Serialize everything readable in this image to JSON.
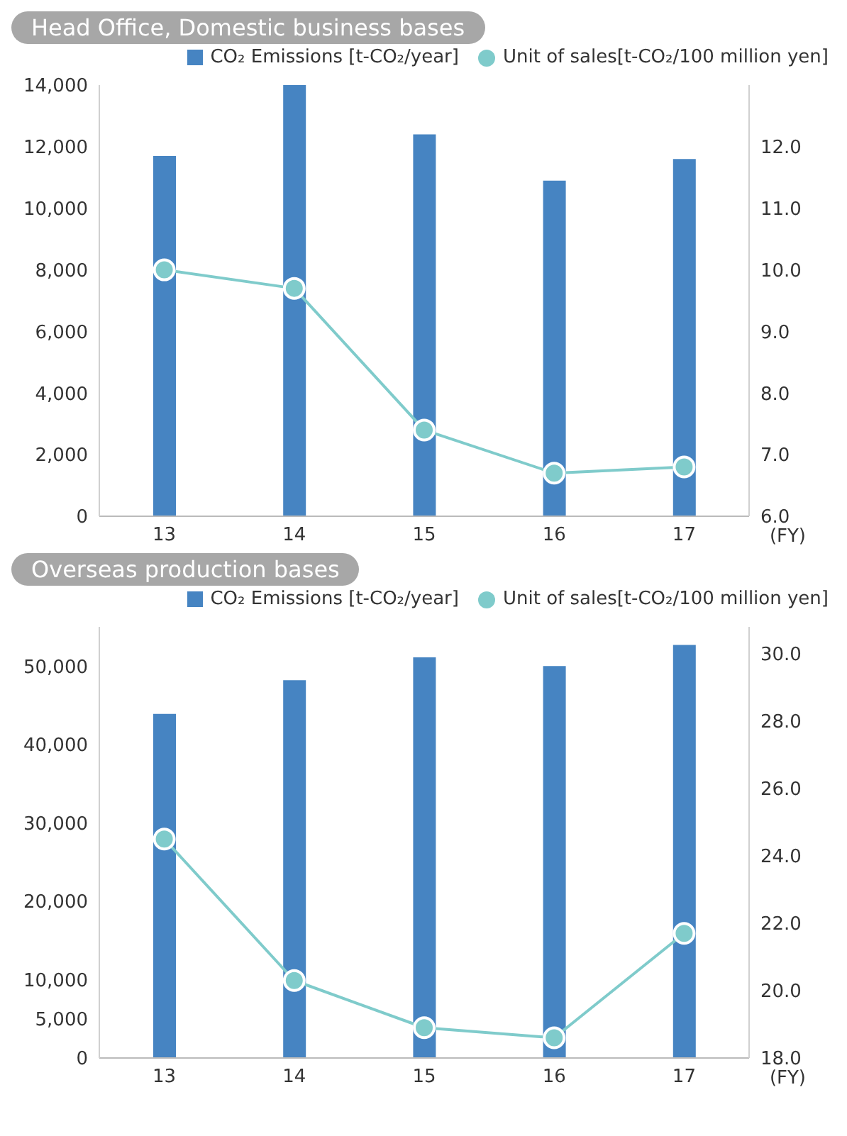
{
  "chart_data": [
    {
      "type": "bar",
      "title": "Head Office, Domestic business bases",
      "categories": [
        "13",
        "14",
        "15",
        "16",
        "17"
      ],
      "xlabel": "(FY)",
      "legend": "top",
      "marker": "circle",
      "grid": false,
      "series": [
        {
          "name": "CO₂ Emissions [t-CO₂/year]",
          "color": "#4684c2",
          "values": [
            11700,
            14000,
            12400,
            10900,
            11600
          ]
        },
        {
          "name": "Unit of sales[t-CO₂/100 million yen]",
          "type": "line",
          "axis": "y2",
          "color": "#7fcbcb",
          "values": [
            10.0,
            9.7,
            7.4,
            6.7,
            6.8
          ]
        }
      ],
      "ylim": [
        0,
        14000
      ],
      "yticks": [
        0,
        {
          "value": 2000,
          "label": "2,000"
        },
        {
          "value": 4000,
          "label": "4,000"
        },
        {
          "value": 6000,
          "label": "6,000"
        },
        {
          "value": 8000,
          "label": "8,000"
        },
        {
          "value": 10000,
          "label": "10,000"
        },
        {
          "value": 12000,
          "label": "12,000"
        },
        {
          "value": 14000,
          "label": "14,000"
        }
      ],
      "y2lim": [
        6,
        13
      ],
      "y2ticks": [
        {
          "value": 6,
          "label": "6.0"
        },
        {
          "value": 7,
          "label": "7.0"
        },
        {
          "value": 8,
          "label": "8.0"
        },
        {
          "value": 9,
          "label": "9.0"
        },
        {
          "value": 10,
          "label": "10.0"
        },
        {
          "value": 11,
          "label": "11.0"
        },
        {
          "value": 12,
          "label": "12.0"
        }
      ]
    },
    {
      "type": "bar",
      "title": "Overseas production bases",
      "categories": [
        "13",
        "14",
        "15",
        "16",
        "17"
      ],
      "xlabel": "(FY)",
      "legend": "top",
      "marker": "circle",
      "grid": false,
      "series": [
        {
          "name": "CO₂ Emissions [t-CO₂/year]",
          "color": "#4684c2",
          "values": [
            43900,
            48200,
            51100,
            50000,
            52700
          ]
        },
        {
          "name": "Unit of sales[t-CO₂/100 million yen]",
          "type": "line",
          "axis": "y2",
          "color": "#7fcbcb",
          "values": [
            24.5,
            20.3,
            18.9,
            18.6,
            21.7
          ]
        }
      ],
      "ylim": [
        0,
        55000
      ],
      "yticks": [
        0,
        {
          "value": 5000,
          "label": "5,000"
        },
        {
          "value": 10000,
          "label": "10,000"
        },
        {
          "value": 20000,
          "label": "20,000"
        },
        {
          "value": 30000,
          "label": "30,000"
        },
        {
          "value": 40000,
          "label": "40,000"
        },
        {
          "value": 50000,
          "label": "50,000"
        }
      ],
      "y2lim": [
        18,
        30.8
      ],
      "y2ticks": [
        {
          "value": 18,
          "label": "18.0"
        },
        {
          "value": 20,
          "label": "20.0"
        },
        {
          "value": 22,
          "label": "22.0"
        },
        {
          "value": 24,
          "label": "24.0"
        },
        {
          "value": 26,
          "label": "26.0"
        },
        {
          "value": 28,
          "label": "28.0"
        },
        {
          "value": 30,
          "label": "30.0"
        }
      ]
    }
  ]
}
